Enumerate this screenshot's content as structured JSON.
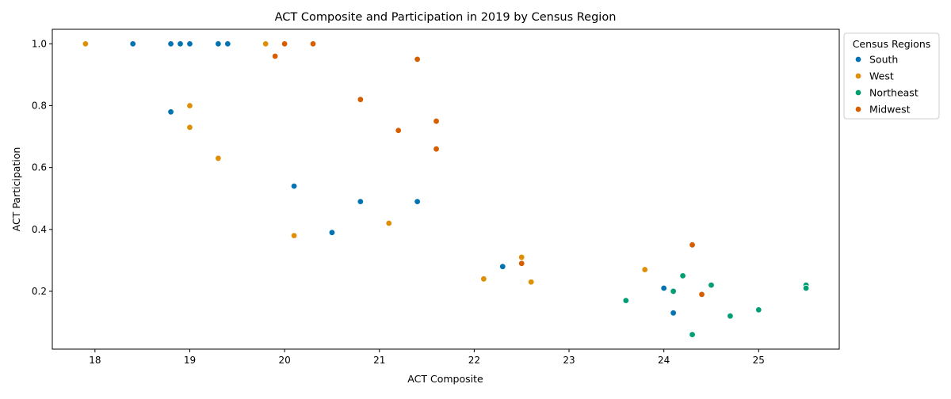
{
  "chart_data": {
    "type": "scatter",
    "title": "ACT Composite and Participation in 2019 by Census Region",
    "xlabel": "ACT Composite",
    "ylabel": "ACT Participation",
    "xlim": [
      17.55,
      25.85
    ],
    "ylim": [
      0.013,
      1.047
    ],
    "x_ticks": [
      18,
      19,
      20,
      21,
      22,
      23,
      24,
      25
    ],
    "y_ticks": [
      0.2,
      0.4,
      0.6,
      0.8,
      1.0
    ],
    "x_tick_labels": [
      "18",
      "19",
      "20",
      "21",
      "22",
      "23",
      "24",
      "25"
    ],
    "y_tick_labels": [
      "0.2",
      "0.4",
      "0.6",
      "0.8",
      "1.0"
    ],
    "grid": false,
    "legend": {
      "title": "Census Regions",
      "placement": "outside right, top"
    },
    "series": [
      {
        "name": "South",
        "color": "#0173b2",
        "points": [
          [
            18.4,
            1.0
          ],
          [
            18.8,
            1.0
          ],
          [
            18.9,
            1.0
          ],
          [
            19.0,
            1.0
          ],
          [
            19.3,
            1.0
          ],
          [
            19.4,
            1.0
          ],
          [
            18.8,
            0.78
          ],
          [
            20.1,
            0.54
          ],
          [
            20.8,
            0.49
          ],
          [
            21.4,
            0.49
          ],
          [
            20.5,
            0.39
          ],
          [
            22.3,
            0.28
          ],
          [
            24.0,
            0.21
          ],
          [
            24.1,
            0.13
          ]
        ]
      },
      {
        "name": "West",
        "color": "#de8f05",
        "points": [
          [
            17.9,
            1.0
          ],
          [
            19.8,
            1.0
          ],
          [
            19.0,
            0.8
          ],
          [
            19.0,
            0.73
          ],
          [
            19.3,
            0.63
          ],
          [
            20.1,
            0.38
          ],
          [
            21.1,
            0.42
          ],
          [
            22.5,
            0.31
          ],
          [
            22.1,
            0.24
          ],
          [
            22.6,
            0.23
          ],
          [
            23.8,
            0.27
          ]
        ]
      },
      {
        "name": "Northeast",
        "color": "#029e73",
        "points": [
          [
            23.6,
            0.17
          ],
          [
            24.1,
            0.2
          ],
          [
            24.2,
            0.25
          ],
          [
            24.5,
            0.22
          ],
          [
            24.3,
            0.06
          ],
          [
            24.7,
            0.12
          ],
          [
            25.0,
            0.14
          ],
          [
            25.5,
            0.22
          ],
          [
            25.5,
            0.21
          ]
        ]
      },
      {
        "name": "Midwest",
        "color": "#d55e00",
        "points": [
          [
            20.0,
            1.0
          ],
          [
            20.3,
            1.0
          ],
          [
            19.9,
            0.96
          ],
          [
            21.4,
            0.95
          ],
          [
            20.8,
            0.82
          ],
          [
            21.6,
            0.75
          ],
          [
            21.2,
            0.72
          ],
          [
            21.6,
            0.66
          ],
          [
            22.5,
            0.29
          ],
          [
            24.3,
            0.35
          ],
          [
            24.4,
            0.19
          ]
        ]
      }
    ]
  }
}
